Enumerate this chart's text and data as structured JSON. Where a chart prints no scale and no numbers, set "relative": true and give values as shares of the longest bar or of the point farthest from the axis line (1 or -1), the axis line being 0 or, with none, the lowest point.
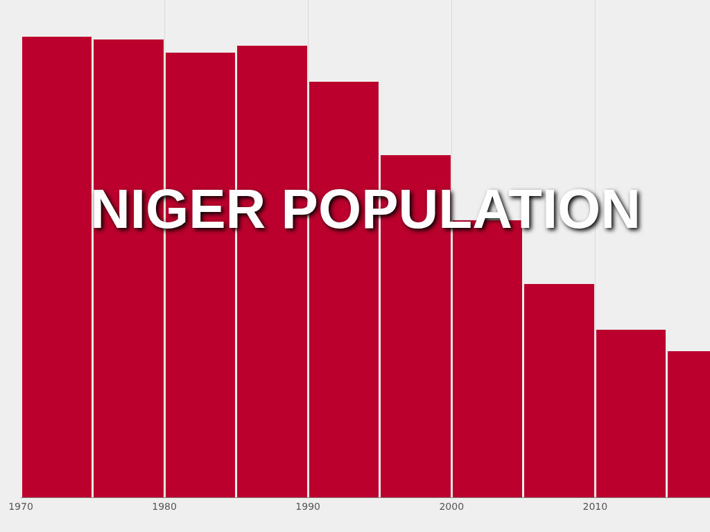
{
  "chart_data": {
    "type": "bar",
    "title": "NIGER POPULATION",
    "relative": true,
    "x": [
      1972.5,
      1977.5,
      1982.5,
      1987.5,
      1992.5,
      1997.5,
      2002.5,
      2007.5,
      2012.5,
      2017.5
    ],
    "values": [
      1,
      0.994,
      0.966,
      0.981,
      0.902,
      0.743,
      0.601,
      0.464,
      0.364,
      0.317
    ],
    "color": "#bc002d",
    "xlim": [
      1970,
      2018
    ],
    "xticks": [
      1970,
      1980,
      1990,
      2000,
      2010
    ],
    "grid": "x"
  }
}
